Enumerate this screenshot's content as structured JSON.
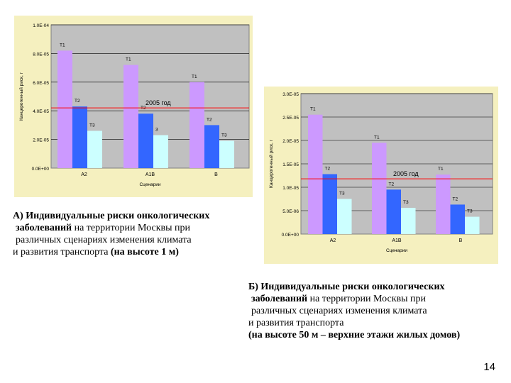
{
  "colors": {
    "t1": "#cc99ff",
    "t2": "#3366ff",
    "t3": "#ccffff",
    "threshold": "#ff0000",
    "panel": "#f5f0bf",
    "plot": "#c0c0c0"
  },
  "chart_data": [
    {
      "type": "bar",
      "ylabel": "Канцерогенный риск, г",
      "xlabel": "Сценарии",
      "categories": [
        "A2",
        "A1B",
        "B"
      ],
      "ylim": [
        0,
        0.0001
      ],
      "yticks": [
        0,
        2e-05,
        4e-05,
        6e-05,
        8e-05,
        0.0001
      ],
      "ytick_labels": [
        "0.0E+00",
        "2.0E-05",
        "4.0E-05",
        "6.0E-05",
        "8.0E-05",
        "1.0E-04"
      ],
      "series": [
        {
          "name": "T1",
          "values": [
            8.2e-05,
            7.2e-05,
            6e-05
          ],
          "labels": [
            "T1",
            "T1",
            "T1"
          ]
        },
        {
          "name": "T2",
          "values": [
            4.3e-05,
            3.8e-05,
            3e-05
          ],
          "labels": [
            "T2",
            "T2",
            "T2"
          ]
        },
        {
          "name": "T3",
          "values": [
            2.6e-05,
            2.3e-05,
            1.9e-05
          ],
          "labels": [
            "T3",
            "3",
            "T3"
          ]
        }
      ],
      "threshold": {
        "value": 4.2e-05,
        "label": "2005 год"
      }
    },
    {
      "type": "bar",
      "ylabel": "Канцерогенный риск, г",
      "xlabel": "Сценарии",
      "categories": [
        "A2",
        "A1B",
        "B"
      ],
      "ylim": [
        0,
        3e-05
      ],
      "yticks": [
        0,
        5e-06,
        1e-05,
        1.5e-05,
        2e-05,
        2.5e-05,
        3e-05
      ],
      "ytick_labels": [
        "0.0E+00",
        "5.0E-06",
        "1.0E-05",
        "1.5E-05",
        "2.0E-05",
        "2.5E-05",
        "3.0E-05"
      ],
      "series": [
        {
          "name": "T1",
          "values": [
            2.55e-05,
            1.95e-05,
            1.27e-05
          ],
          "labels": [
            "T1",
            "T1",
            "T1"
          ]
        },
        {
          "name": "T2",
          "values": [
            1.28e-05,
            9.5e-06,
            6.3e-06
          ],
          "labels": [
            "T2",
            "T2",
            "T2"
          ]
        },
        {
          "name": "T3",
          "values": [
            7.5e-06,
            5.6e-06,
            3.7e-06
          ],
          "labels": [
            "T3",
            "T3",
            "T3"
          ]
        }
      ],
      "threshold": {
        "value": 1.18e-05,
        "label": "2005 год"
      }
    }
  ],
  "caption_a": {
    "l1": "А) Индивидуальные риски онкологических",
    "l2_bold": "заболеваний",
    "l2_rest": " на территории Москвы при",
    "l3": "различных сценариях изменения климата",
    "l4_a": "и развития транспорта ",
    "l4_b": "(на высоте 1 м)"
  },
  "caption_b": {
    "l1": "Б) Индивидуальные риски онкологических",
    "l2_bold": "заболеваний",
    "l2_rest": " на территории Москвы при",
    "l3": "различных сценариях изменения климата",
    "l4": "и развития транспорта",
    "l5": "(на высоте 50 м – верхние этажи жилых домов)"
  },
  "page_number": "14"
}
